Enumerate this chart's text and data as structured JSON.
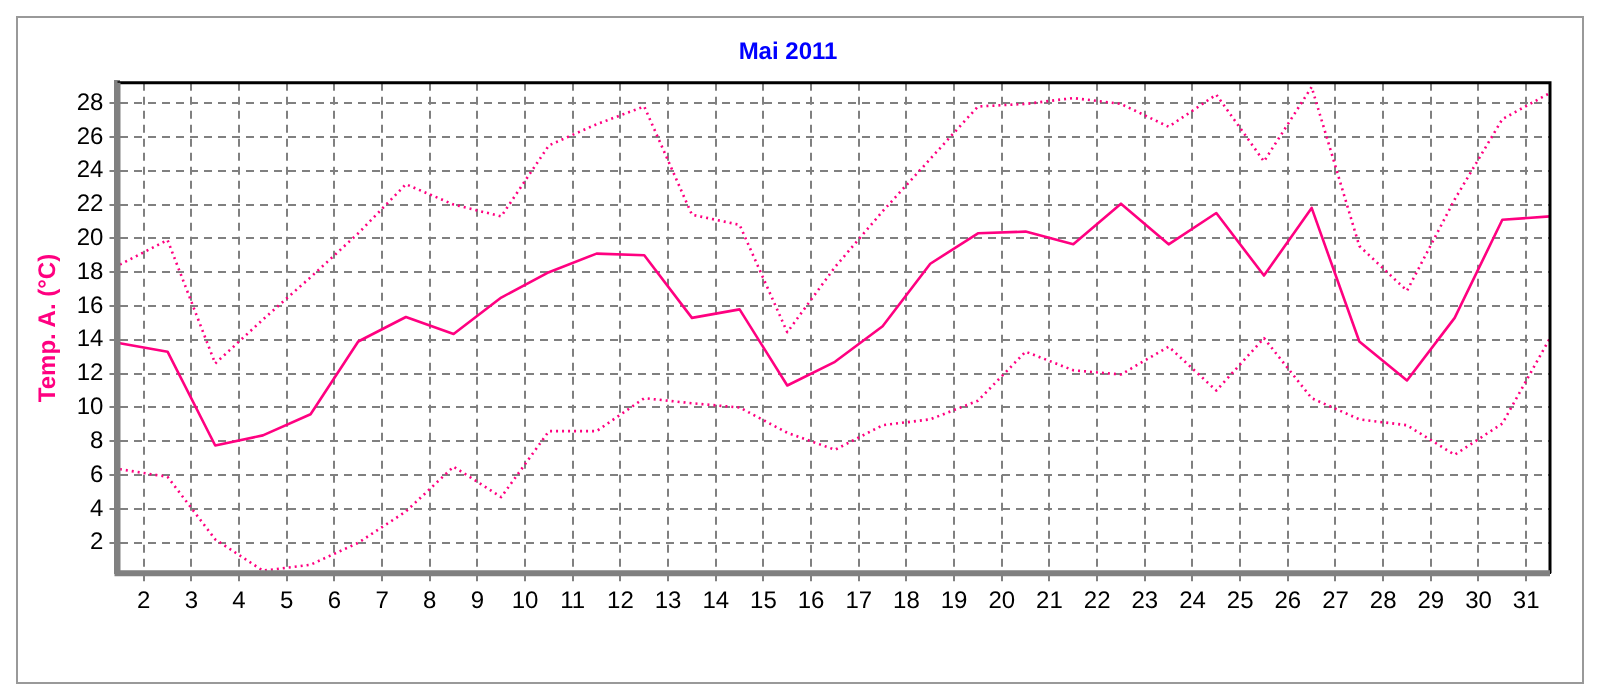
{
  "chart_data": {
    "type": "line",
    "title": "Mai 2011",
    "ylabel": "Temp. A. (°C)",
    "x": [
      1.5,
      2.5,
      3.5,
      4.5,
      5.5,
      6.5,
      7.5,
      8.5,
      9.5,
      10.5,
      11.5,
      12.5,
      13.5,
      14.5,
      15.5,
      16.5,
      17.5,
      18.5,
      19.5,
      20.5,
      21.5,
      22.5,
      23.5,
      24.5,
      25.5,
      26.5,
      27.5,
      28.5,
      29.5,
      30.5,
      31.5
    ],
    "series": [
      {
        "color": "#ff0080",
        "line_style": "dotted",
        "values": [
          18.45,
          19.9,
          12.6,
          15.2,
          17.7,
          20.3,
          23.2,
          22.0,
          21.3,
          25.5,
          26.75,
          27.8,
          21.4,
          20.8,
          14.45,
          18.3,
          21.6,
          24.7,
          27.8,
          27.95,
          28.3,
          27.95,
          26.6,
          28.5,
          24.55,
          28.95,
          19.55,
          16.9,
          22.3,
          27.05,
          28.6
        ]
      },
      {
        "color": "#ff0080",
        "line_style": "solid",
        "values": [
          13.8,
          13.3,
          7.75,
          8.35,
          9.6,
          13.9,
          15.35,
          14.35,
          16.5,
          18.0,
          19.1,
          19.0,
          15.3,
          15.8,
          11.3,
          12.7,
          14.8,
          18.5,
          20.3,
          20.4,
          19.65,
          22.05,
          19.65,
          21.5,
          17.8,
          21.8,
          13.9,
          11.6,
          15.3,
          21.1,
          21.3
        ]
      },
      {
        "color": "#ff0080",
        "line_style": "dotted",
        "values": [
          6.35,
          5.9,
          2.2,
          0.35,
          0.7,
          2.0,
          3.85,
          6.5,
          4.7,
          8.6,
          8.6,
          10.55,
          10.25,
          10.0,
          8.5,
          7.5,
          8.95,
          9.3,
          10.4,
          13.3,
          12.2,
          11.95,
          13.6,
          11.0,
          14.1,
          10.55,
          9.3,
          8.95,
          7.2,
          9.05,
          14.1
        ]
      }
    ],
    "xlim": [
      1.45,
      31.5
    ],
    "xticks": [
      2,
      3,
      4,
      5,
      6,
      7,
      8,
      9,
      10,
      11,
      12,
      13,
      14,
      15,
      16,
      17,
      18,
      19,
      20,
      21,
      22,
      23,
      24,
      25,
      26,
      27,
      28,
      29,
      30,
      31
    ],
    "ylim": [
      0.2,
      29.2
    ],
    "yticks": [
      2,
      4,
      6,
      8,
      10,
      12,
      14,
      16,
      18,
      20,
      22,
      24,
      26,
      28
    ],
    "grid": true,
    "legend": false,
    "marker": "none"
  }
}
